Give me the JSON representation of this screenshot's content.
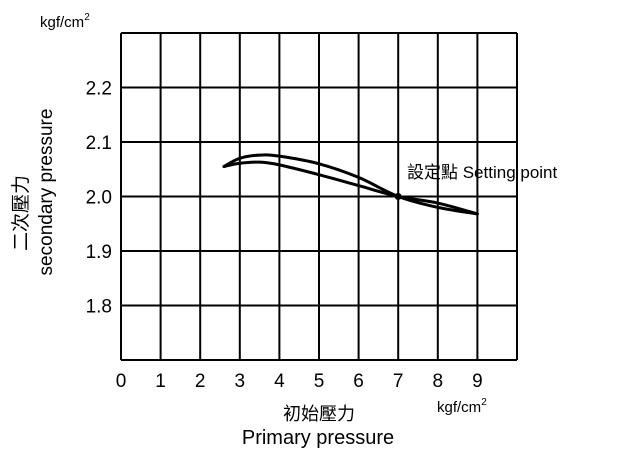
{
  "chart_data": {
    "type": "line",
    "y_unit": "kgf/cm2",
    "x_unit": "kgf/cm2",
    "ylabel_zh": "二次壓力",
    "ylabel_en": "secondary pressure",
    "xlabel_zh": "初始壓力",
    "xlabel_en": "Primary pressure",
    "xlim": [
      0,
      10
    ],
    "ylim": [
      1.7,
      2.3
    ],
    "x_ticks": [
      0,
      1,
      2,
      3,
      4,
      5,
      6,
      7,
      8,
      9
    ],
    "y_ticks": [
      "1.8",
      "1.9",
      "2.0",
      "2.1",
      "2.2"
    ],
    "grid": true,
    "annotation": "設定點 Setting point",
    "setting_point": {
      "x": 7,
      "y": 2.0
    },
    "series": [
      {
        "x": [
          2.6,
          3.0,
          3.5,
          4.0,
          5.0,
          6.0,
          7.0,
          8.0,
          9.0
        ],
        "y": [
          2.055,
          2.07,
          2.076,
          2.074,
          2.06,
          2.035,
          2.0,
          1.98,
          1.968
        ]
      },
      {
        "x": [
          2.6,
          3.0,
          3.5,
          4.0,
          5.0,
          6.0,
          7.0,
          8.0,
          9.0
        ],
        "y": [
          2.055,
          2.061,
          2.063,
          2.058,
          2.04,
          2.02,
          2.0,
          1.988,
          1.968
        ]
      }
    ]
  }
}
